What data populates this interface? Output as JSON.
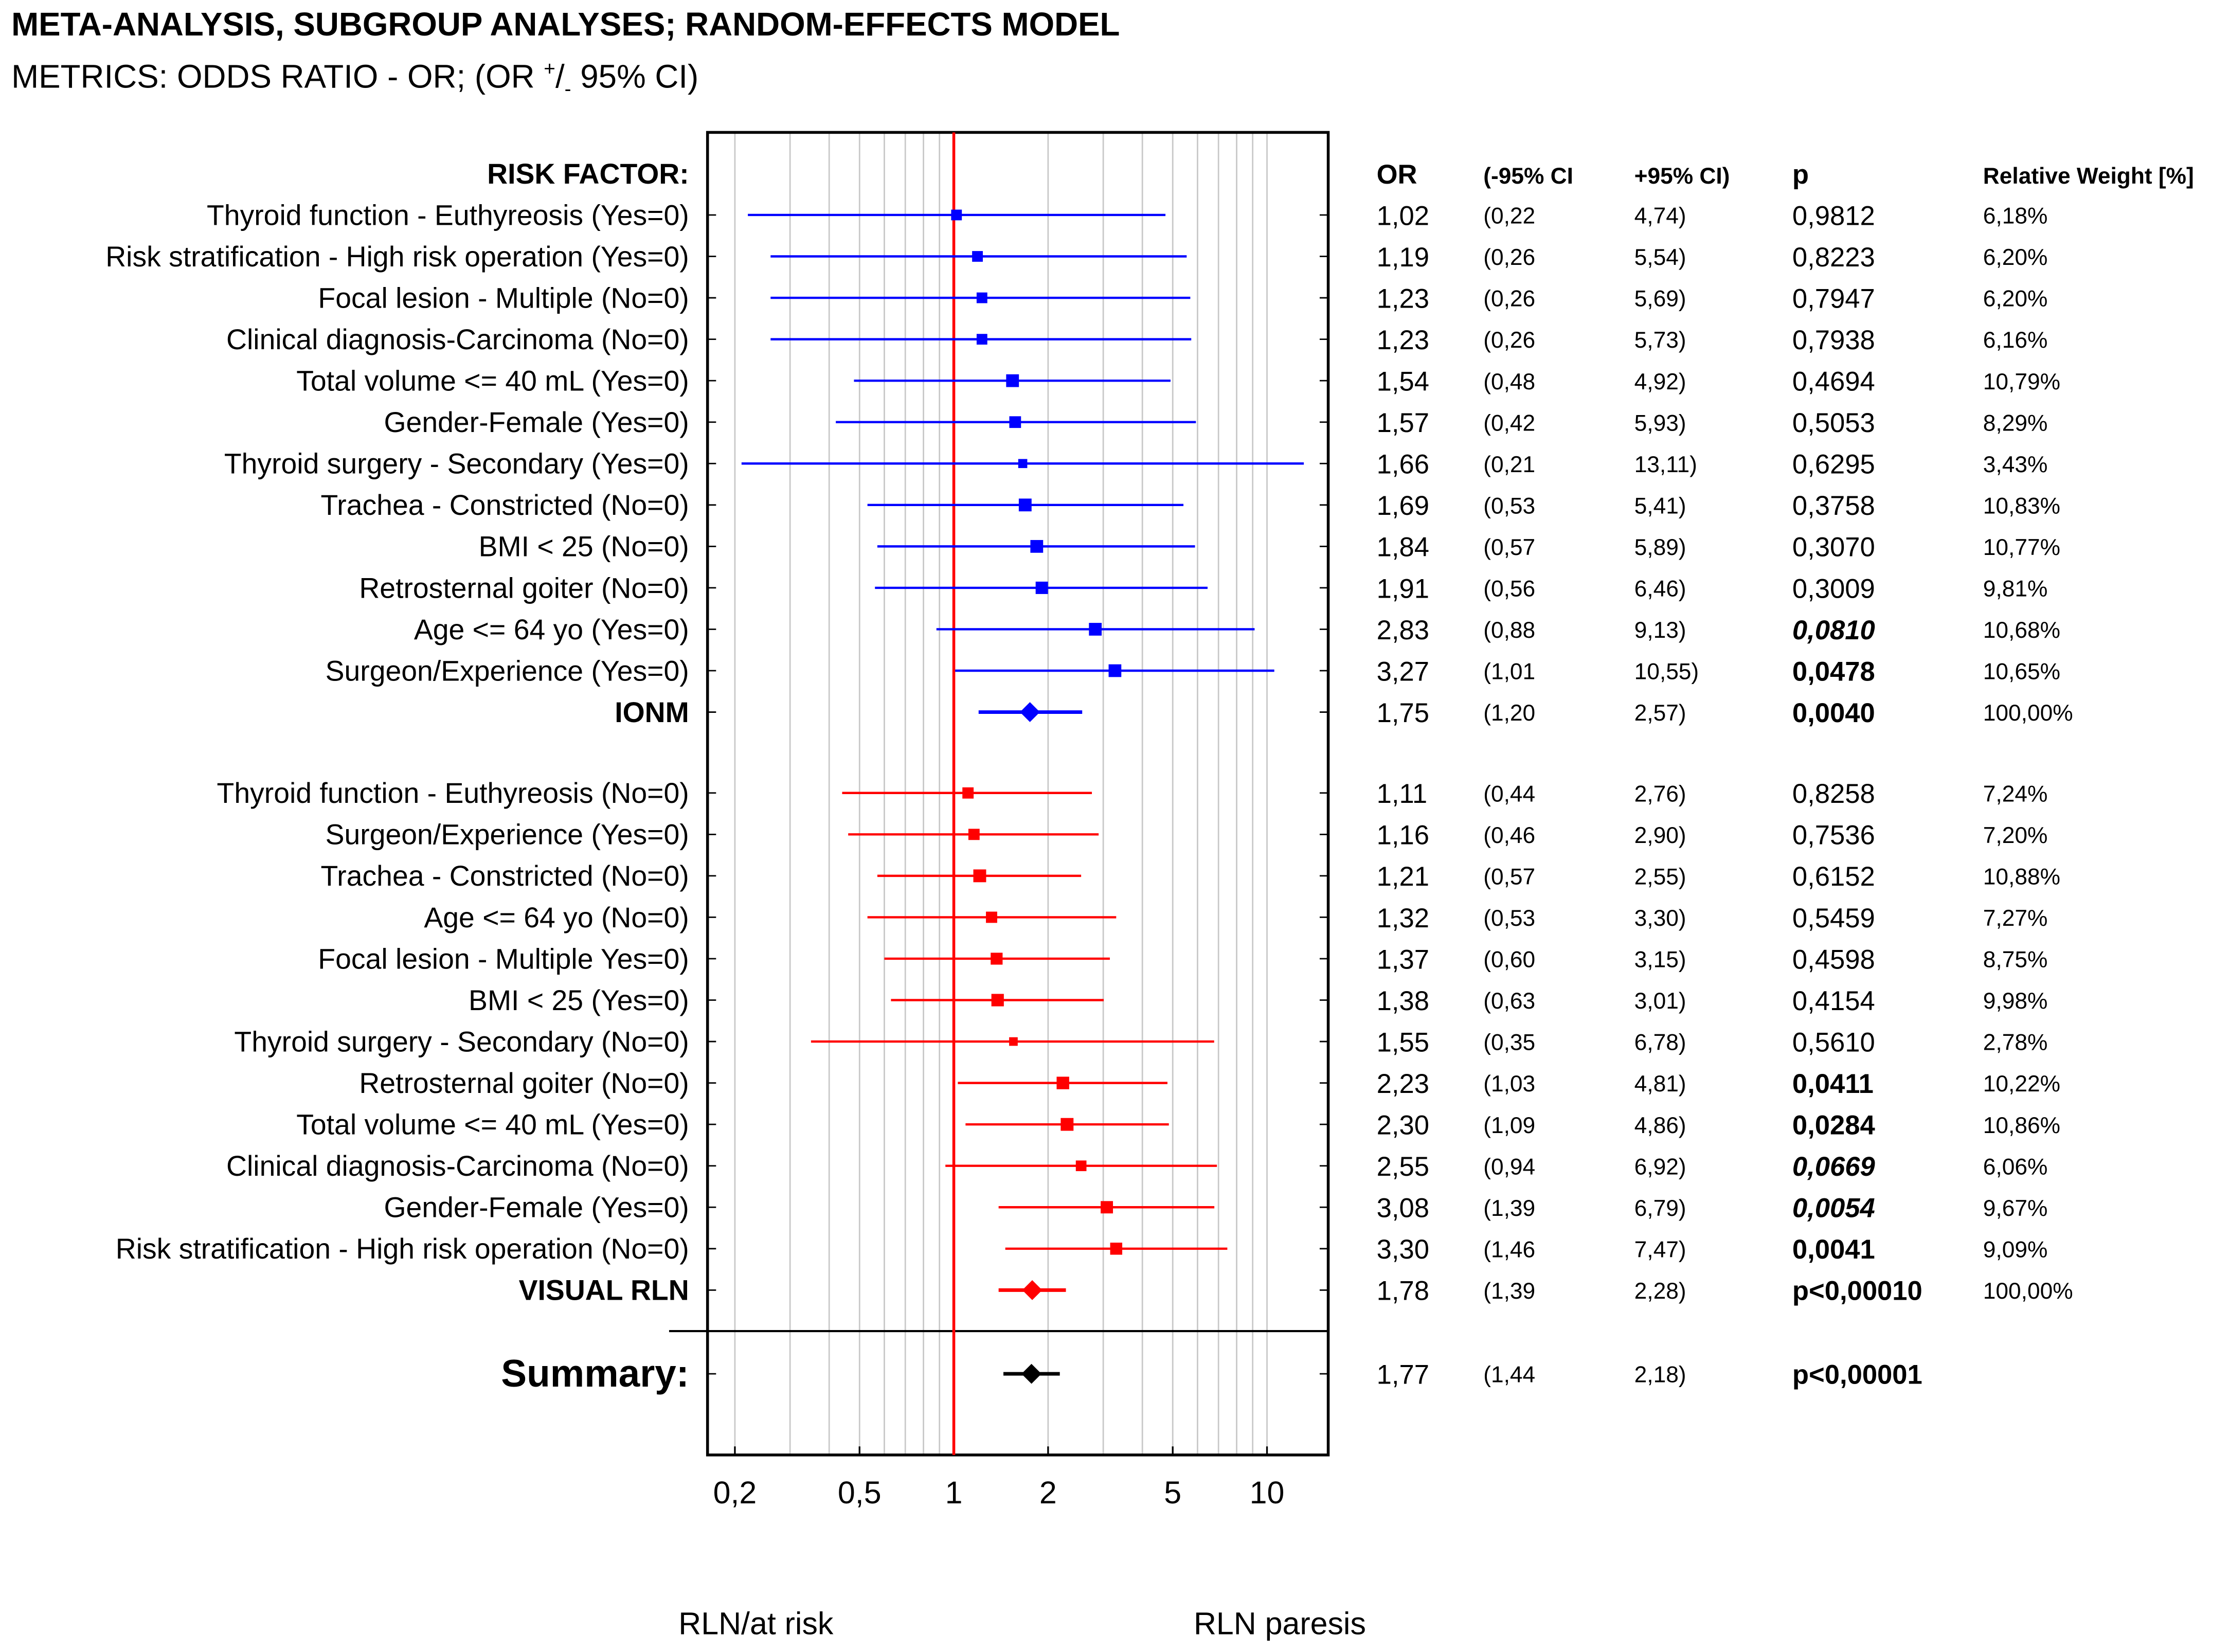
{
  "header": {
    "title": "META-ANALYSIS, SUBGROUP ANALYSES; RANDOM-EFFECTS MODEL",
    "subtitle_prefix": "METRICS: ODDS RATIO - OR; (OR ",
    "subtitle_plus": "+",
    "subtitle_slash": "/",
    "subtitle_minus": "-",
    "subtitle_suffix": " 95% CI)"
  },
  "table_headers": {
    "label": "RISK FACTOR:",
    "or": "OR",
    "lo": "(-95% CI",
    "hi": "+95% CI)",
    "p": "p",
    "weight": "Relative Weight [%]"
  },
  "axis": {
    "ticks": [
      {
        "value": 0.2,
        "label": "0,2"
      },
      {
        "value": 0.5,
        "label": "0,5"
      },
      {
        "value": 1,
        "label": "1"
      },
      {
        "value": 2,
        "label": "2"
      },
      {
        "value": 5,
        "label": "5"
      },
      {
        "value": 10,
        "label": "10"
      }
    ],
    "left_caption": "RLN/at risk",
    "right_caption": "RLN paresis",
    "scale": "log",
    "xlim": [
      0.17,
      13.5
    ],
    "reference_line": 1
  },
  "colors": {
    "ionm": "#0000ff",
    "visual": "#ff0000",
    "summary": "#000000",
    "reference": "#ff0000",
    "grid": "#c8c8c8"
  },
  "chart_data": {
    "type": "forest",
    "groups": [
      {
        "name": "IONM",
        "color": "#0000ff",
        "rows": [
          {
            "label": "Thyroid function - Euthyreosis (Yes=0)",
            "or": 1.02,
            "lo": 0.22,
            "hi": 4.74,
            "or_text": "1,02",
            "lo_text": "(0,22",
            "hi_text": "4,74)",
            "p_text": "0,9812",
            "p_style": "normal",
            "weight": 6.18,
            "weight_text": "6,18%"
          },
          {
            "label": "Risk stratification - High risk operation (Yes=0)",
            "or": 1.19,
            "lo": 0.26,
            "hi": 5.54,
            "or_text": "1,19",
            "lo_text": "(0,26",
            "hi_text": "5,54)",
            "p_text": "0,8223",
            "p_style": "normal",
            "weight": 6.2,
            "weight_text": "6,20%"
          },
          {
            "label": "Focal lesion - Multiple (No=0)",
            "or": 1.23,
            "lo": 0.26,
            "hi": 5.69,
            "or_text": "1,23",
            "lo_text": "(0,26",
            "hi_text": "5,69)",
            "p_text": "0,7947",
            "p_style": "normal",
            "weight": 6.2,
            "weight_text": "6,20%"
          },
          {
            "label": "Clinical diagnosis-Carcinoma (No=0)",
            "or": 1.23,
            "lo": 0.26,
            "hi": 5.73,
            "or_text": "1,23",
            "lo_text": "(0,26",
            "hi_text": "5,73)",
            "p_text": "0,7938",
            "p_style": "normal",
            "weight": 6.16,
            "weight_text": "6,16%"
          },
          {
            "label": "Total volume <= 40 mL (Yes=0)",
            "or": 1.54,
            "lo": 0.48,
            "hi": 4.92,
            "or_text": "1,54",
            "lo_text": "(0,48",
            "hi_text": "4,92)",
            "p_text": "0,4694",
            "p_style": "normal",
            "weight": 10.79,
            "weight_text": "10,79%"
          },
          {
            "label": "Gender-Female (Yes=0)",
            "or": 1.57,
            "lo": 0.42,
            "hi": 5.93,
            "or_text": "1,57",
            "lo_text": "(0,42",
            "hi_text": "5,93)",
            "p_text": "0,5053",
            "p_style": "normal",
            "weight": 8.29,
            "weight_text": "8,29%"
          },
          {
            "label": "Thyroid surgery - Secondary (Yes=0)",
            "or": 1.66,
            "lo": 0.21,
            "hi": 13.11,
            "or_text": "1,66",
            "lo_text": "(0,21",
            "hi_text": "13,11)",
            "p_text": "0,6295",
            "p_style": "normal",
            "weight": 3.43,
            "weight_text": "3,43%"
          },
          {
            "label": "Trachea - Constricted (No=0)",
            "or": 1.69,
            "lo": 0.53,
            "hi": 5.41,
            "or_text": "1,69",
            "lo_text": "(0,53",
            "hi_text": "5,41)",
            "p_text": "0,3758",
            "p_style": "normal",
            "weight": 10.83,
            "weight_text": "10,83%"
          },
          {
            "label": "BMI < 25 (No=0)",
            "or": 1.84,
            "lo": 0.57,
            "hi": 5.89,
            "or_text": "1,84",
            "lo_text": "(0,57",
            "hi_text": "5,89)",
            "p_text": "0,3070",
            "p_style": "normal",
            "weight": 10.77,
            "weight_text": "10,77%"
          },
          {
            "label": "Retrosternal goiter (No=0)",
            "or": 1.91,
            "lo": 0.56,
            "hi": 6.46,
            "or_text": "1,91",
            "lo_text": "(0,56",
            "hi_text": "6,46)",
            "p_text": "0,3009",
            "p_style": "normal",
            "weight": 9.81,
            "weight_text": "9,81%"
          },
          {
            "label": "Age <= 64 yo (Yes=0)",
            "or": 2.83,
            "lo": 0.88,
            "hi": 9.13,
            "or_text": "2,83",
            "lo_text": "(0,88",
            "hi_text": "9,13)",
            "p_text": "0,0810",
            "p_style": "bold-italic",
            "weight": 10.68,
            "weight_text": "10,68%"
          },
          {
            "label": "Surgeon/Experience (Yes=0)",
            "or": 3.27,
            "lo": 1.01,
            "hi": 10.55,
            "or_text": "3,27",
            "lo_text": "(1,01",
            "hi_text": "10,55)",
            "p_text": "0,0478",
            "p_style": "bold",
            "weight": 10.65,
            "weight_text": "10,65%"
          }
        ],
        "pooled": {
          "label": "IONM",
          "or": 1.75,
          "lo": 1.2,
          "hi": 2.57,
          "or_text": "1,75",
          "lo_text": "(1,20",
          "hi_text": "2,57)",
          "p_text": "0,0040",
          "p_style": "bold",
          "weight_text": "100,00%"
        }
      },
      {
        "name": "VISUAL RLN",
        "color": "#ff0000",
        "rows": [
          {
            "label": "Thyroid function - Euthyreosis (No=0)",
            "or": 1.11,
            "lo": 0.44,
            "hi": 2.76,
            "or_text": "1,11",
            "lo_text": "(0,44",
            "hi_text": "2,76)",
            "p_text": "0,8258",
            "p_style": "normal",
            "weight": 7.24,
            "weight_text": "7,24%"
          },
          {
            "label": "Surgeon/Experience (Yes=0)",
            "or": 1.16,
            "lo": 0.46,
            "hi": 2.9,
            "or_text": "1,16",
            "lo_text": "(0,46",
            "hi_text": "2,90)",
            "p_text": "0,7536",
            "p_style": "normal",
            "weight": 7.2,
            "weight_text": "7,20%"
          },
          {
            "label": "Trachea - Constricted (No=0)",
            "or": 1.21,
            "lo": 0.57,
            "hi": 2.55,
            "or_text": "1,21",
            "lo_text": "(0,57",
            "hi_text": "2,55)",
            "p_text": "0,6152",
            "p_style": "normal",
            "weight": 10.88,
            "weight_text": "10,88%"
          },
          {
            "label": "Age <= 64 yo (No=0)",
            "or": 1.32,
            "lo": 0.53,
            "hi": 3.3,
            "or_text": "1,32",
            "lo_text": "(0,53",
            "hi_text": "3,30)",
            "p_text": "0,5459",
            "p_style": "normal",
            "weight": 7.27,
            "weight_text": "7,27%"
          },
          {
            "label": "Focal lesion - Multiple Yes=0)",
            "or": 1.37,
            "lo": 0.6,
            "hi": 3.15,
            "or_text": "1,37",
            "lo_text": "(0,60",
            "hi_text": "3,15)",
            "p_text": "0,4598",
            "p_style": "normal",
            "weight": 8.75,
            "weight_text": "8,75%"
          },
          {
            "label": "BMI < 25 (Yes=0)",
            "or": 1.38,
            "lo": 0.63,
            "hi": 3.01,
            "or_text": "1,38",
            "lo_text": "(0,63",
            "hi_text": "3,01)",
            "p_text": "0,4154",
            "p_style": "normal",
            "weight": 9.98,
            "weight_text": "9,98%"
          },
          {
            "label": "Thyroid surgery - Secondary (No=0)",
            "or": 1.55,
            "lo": 0.35,
            "hi": 6.78,
            "or_text": "1,55",
            "lo_text": "(0,35",
            "hi_text": "6,78)",
            "p_text": "0,5610",
            "p_style": "normal",
            "weight": 2.78,
            "weight_text": "2,78%"
          },
          {
            "label": "Retrosternal goiter (No=0)",
            "or": 2.23,
            "lo": 1.03,
            "hi": 4.81,
            "or_text": "2,23",
            "lo_text": "(1,03",
            "hi_text": "4,81)",
            "p_text": "0,0411",
            "p_style": "bold",
            "weight": 10.22,
            "weight_text": "10,22%"
          },
          {
            "label": "Total volume <= 40 mL (Yes=0)",
            "or": 2.3,
            "lo": 1.09,
            "hi": 4.86,
            "or_text": "2,30",
            "lo_text": "(1,09",
            "hi_text": "4,86)",
            "p_text": "0,0284",
            "p_style": "bold",
            "weight": 10.86,
            "weight_text": "10,86%"
          },
          {
            "label": "Clinical diagnosis-Carcinoma (No=0)",
            "or": 2.55,
            "lo": 0.94,
            "hi": 6.92,
            "or_text": "2,55",
            "lo_text": "(0,94",
            "hi_text": "6,92)",
            "p_text": "0,0669",
            "p_style": "bold-italic",
            "weight": 6.06,
            "weight_text": "6,06%"
          },
          {
            "label": "Gender-Female (Yes=0)",
            "or": 3.08,
            "lo": 1.39,
            "hi": 6.79,
            "or_text": "3,08",
            "lo_text": "(1,39",
            "hi_text": "6,79)",
            "p_text": "0,0054",
            "p_style": "bold-italic",
            "weight": 9.67,
            "weight_text": "9,67%"
          },
          {
            "label": "Risk stratification - High risk operation (No=0)",
            "or": 3.3,
            "lo": 1.46,
            "hi": 7.47,
            "or_text": "3,30",
            "lo_text": "(1,46",
            "hi_text": "7,47)",
            "p_text": "0,0041",
            "p_style": "bold",
            "weight": 9.09,
            "weight_text": "9,09%"
          }
        ],
        "pooled": {
          "label": "VISUAL RLN",
          "or": 1.78,
          "lo": 1.39,
          "hi": 2.28,
          "or_text": "1,78",
          "lo_text": "(1,39",
          "hi_text": "2,28)",
          "p_text": "p<0,00010",
          "p_style": "bold",
          "weight_text": "100,00%"
        }
      }
    ],
    "summary": {
      "label": "Summary:",
      "or": 1.77,
      "lo": 1.44,
      "hi": 2.18,
      "or_text": "1,77",
      "lo_text": "(1,44",
      "hi_text": "2,18)",
      "p_text": "p<0,00001",
      "p_style": "bold",
      "color": "#000000"
    }
  }
}
